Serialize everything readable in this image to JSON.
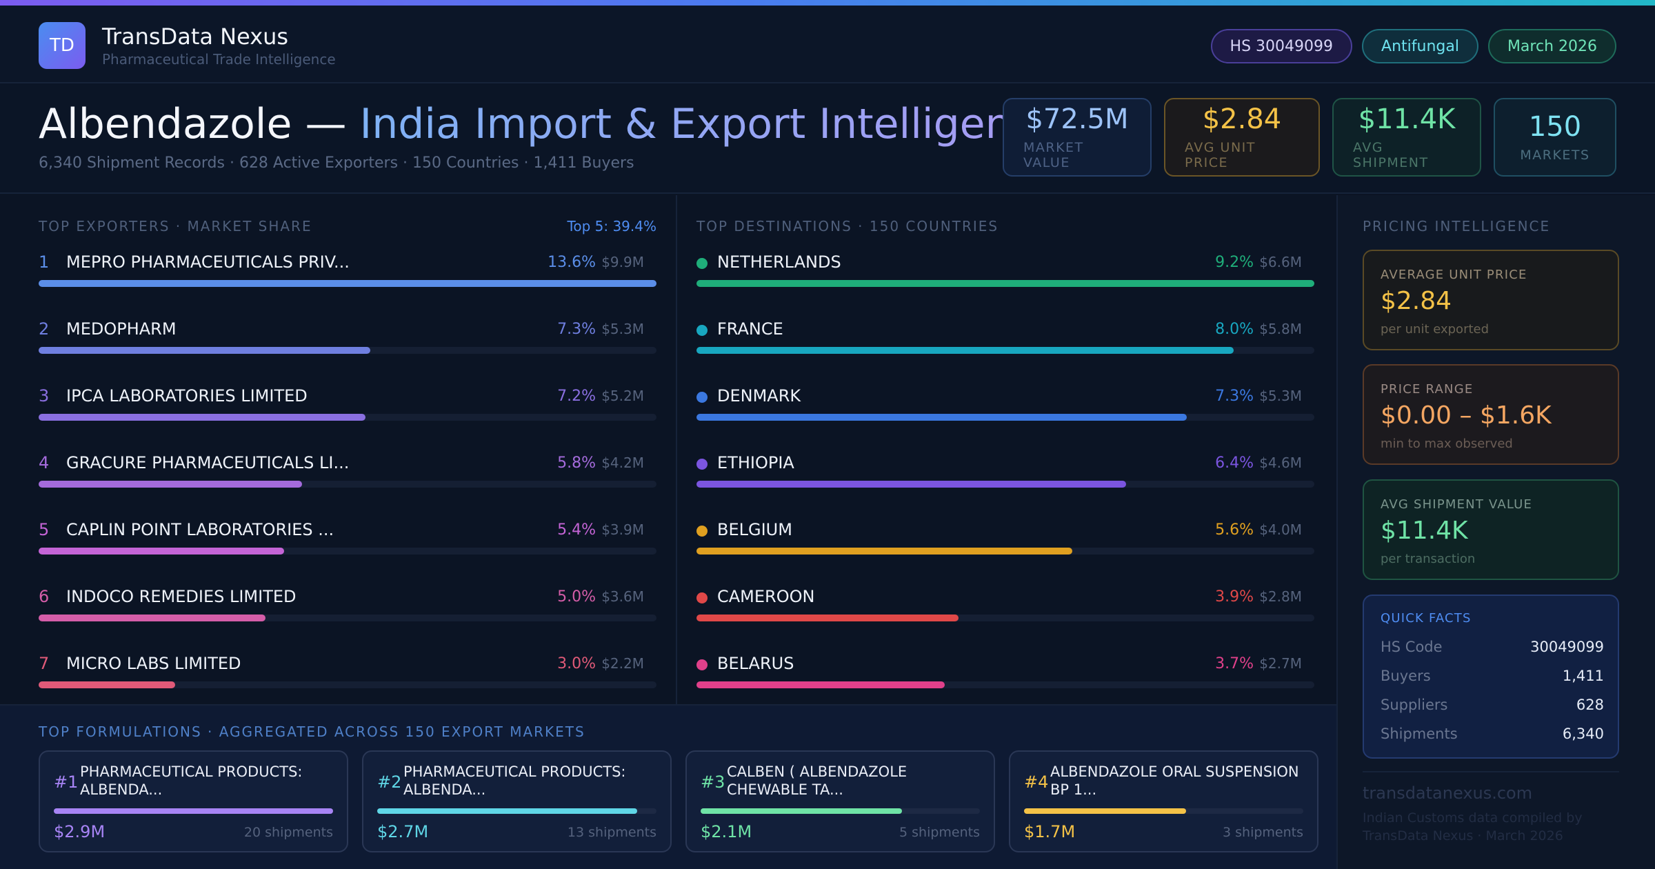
{
  "brand": {
    "initials": "TD",
    "name": "TransData Nexus",
    "tagline": "Pharmaceutical Trade Intelligence"
  },
  "tags": {
    "hs": "HS 30049099",
    "category": "Antifungal",
    "period": "March 2026"
  },
  "hero": {
    "title_main": "Albendazole — ",
    "title_accent": "India Import & Export Intelligence",
    "subtitle": "6,340 Shipment Records · 628 Active Exporters · 150 Countries · 1,411 Buyers"
  },
  "kpis": [
    {
      "value": "$72.5M",
      "label": "MARKET VALUE"
    },
    {
      "value": "$2.84",
      "label": "AVG UNIT PRICE"
    },
    {
      "value": "$11.4K",
      "label": "AVG SHIPMENT"
    },
    {
      "value": "150",
      "label": "MARKETS"
    }
  ],
  "exporters": {
    "title": "TOP EXPORTERS · MARKET SHARE",
    "top5": "Top 5: 39.4%",
    "items": [
      {
        "rank": "1",
        "name": "MEPRO PHARMACEUTICALS PRIV...",
        "pct": "13.6%",
        "amount": "$9.9M",
        "share": 13.6,
        "color": "#5b8ee8"
      },
      {
        "rank": "2",
        "name": "MEDOPHARM",
        "pct": "7.3%",
        "amount": "$5.3M",
        "share": 7.3,
        "color": "#6f7fe0"
      },
      {
        "rank": "3",
        "name": "IPCA LABORATORIES LIMITED",
        "pct": "7.2%",
        "amount": "$5.2M",
        "share": 7.2,
        "color": "#8a6fe0"
      },
      {
        "rank": "4",
        "name": "GRACURE PHARMACEUTICALS LI...",
        "pct": "5.8%",
        "amount": "$4.2M",
        "share": 5.8,
        "color": "#a46bdc"
      },
      {
        "rank": "5",
        "name": "CAPLIN POINT LABORATORIES ...",
        "pct": "5.4%",
        "amount": "$3.9M",
        "share": 5.4,
        "color": "#c464d6"
      },
      {
        "rank": "6",
        "name": "INDOCO REMEDIES LIMITED",
        "pct": "5.0%",
        "amount": "$3.6M",
        "share": 5.0,
        "color": "#d45da8"
      },
      {
        "rank": "7",
        "name": "MICRO LABS LIMITED",
        "pct": "3.0%",
        "amount": "$2.2M",
        "share": 3.0,
        "color": "#e05a78"
      }
    ]
  },
  "destinations": {
    "title": "TOP DESTINATIONS · 150 COUNTRIES",
    "items": [
      {
        "name": "NETHERLANDS",
        "pct": "9.2%",
        "amount": "$6.6M",
        "share": 9.2,
        "color": "#1fae7a"
      },
      {
        "name": "FRANCE",
        "pct": "8.0%",
        "amount": "$5.8M",
        "share": 8.0,
        "color": "#18a7c0"
      },
      {
        "name": "DENMARK",
        "pct": "7.3%",
        "amount": "$5.3M",
        "share": 7.3,
        "color": "#3b78e0"
      },
      {
        "name": "ETHIOPIA",
        "pct": "6.4%",
        "amount": "$4.6M",
        "share": 6.4,
        "color": "#7b55e0"
      },
      {
        "name": "BELGIUM",
        "pct": "5.6%",
        "amount": "$4.0M",
        "share": 5.6,
        "color": "#e0a020"
      },
      {
        "name": "CAMEROON",
        "pct": "3.9%",
        "amount": "$2.8M",
        "share": 3.9,
        "color": "#e04848"
      },
      {
        "name": "BELARUS",
        "pct": "3.7%",
        "amount": "$2.7M",
        "share": 3.7,
        "color": "#e0408a"
      }
    ]
  },
  "formulations": {
    "title": "TOP FORMULATIONS · AGGREGATED ACROSS 150 EXPORT MARKETS",
    "items": [
      {
        "num": "#1",
        "name": "PHARMACEUTICAL PRODUCTS: ALBENDA...",
        "value": "$2.9M",
        "shipments": "20 shipments",
        "share": 1.0,
        "color": "#a784f5"
      },
      {
        "num": "#2",
        "name": "PHARMACEUTICAL PRODUCTS: ALBENDA...",
        "value": "$2.7M",
        "shipments": "13 shipments",
        "share": 0.93,
        "color": "#5fd6e6"
      },
      {
        "num": "#3",
        "name": "CALBEN ( ALBENDAZOLE CHEWABLE TA...",
        "value": "$2.1M",
        "shipments": "5 shipments",
        "share": 0.72,
        "color": "#6fe3a6"
      },
      {
        "num": "#4",
        "name": "ALBENDAZOLE ORAL SUSPENSION BP 1...",
        "value": "$1.7M",
        "shipments": "3 shipments",
        "share": 0.58,
        "color": "#f4c247"
      }
    ]
  },
  "pricing": {
    "title": "PRICING INTELLIGENCE",
    "cards": [
      {
        "label": "AVERAGE UNIT PRICE",
        "value": "$2.84",
        "sub": "per unit exported"
      },
      {
        "label": "PRICE RANGE",
        "value": "$0.00 – $1.6K",
        "sub": "min to max observed"
      },
      {
        "label": "AVG SHIPMENT VALUE",
        "value": "$11.4K",
        "sub": "per transaction"
      }
    ],
    "quick_facts": {
      "title": "QUICK FACTS",
      "rows": [
        {
          "key": "HS Code",
          "value": "30049099"
        },
        {
          "key": "Buyers",
          "value": "1,411"
        },
        {
          "key": "Suppliers",
          "value": "628"
        },
        {
          "key": "Shipments",
          "value": "6,340"
        }
      ]
    },
    "site": "transdatanexus.com",
    "note": "Indian Customs data compiled by TransData Nexus · March 2026"
  }
}
